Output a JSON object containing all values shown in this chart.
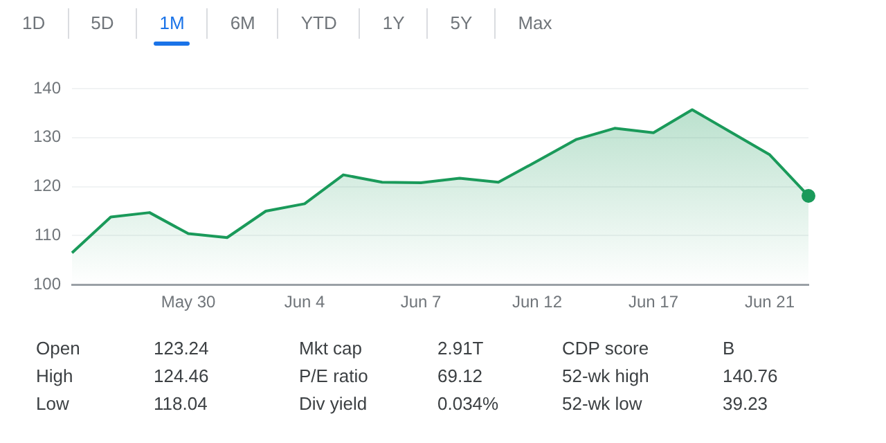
{
  "chart_data": {
    "type": "area",
    "categories": [
      null,
      null,
      null,
      "May 30",
      null,
      null,
      "Jun 4",
      null,
      null,
      "Jun 7",
      null,
      null,
      "Jun 12",
      null,
      null,
      "Jun 17",
      null,
      null,
      "Jun 21",
      null
    ],
    "values": [
      106.5,
      113.8,
      114.7,
      110.4,
      109.6,
      115.0,
      116.5,
      122.4,
      120.9,
      120.8,
      121.7,
      120.9,
      125.2,
      129.6,
      131.9,
      131.0,
      135.7,
      131.1,
      126.5,
      118.1
    ],
    "color": "#1a9a5a",
    "ylim": [
      100,
      140
    ],
    "yticks": [
      100,
      110,
      120,
      130,
      140
    ],
    "grid": "y",
    "legend": false,
    "marker": "none",
    "annotations": [
      "1D",
      "5D",
      "1M",
      "6M",
      "YTD",
      "1Y",
      "5Y",
      "Max",
      "Open",
      "123.24",
      "Mkt cap",
      "2.91T",
      "CDP score",
      "B",
      "High",
      "124.46",
      "P/E ratio",
      "69.12",
      "52-wk high",
      "140.76",
      "Low",
      "118.04",
      "Div yield",
      "0.034%",
      "52-wk low",
      "39.23"
    ]
  }
}
